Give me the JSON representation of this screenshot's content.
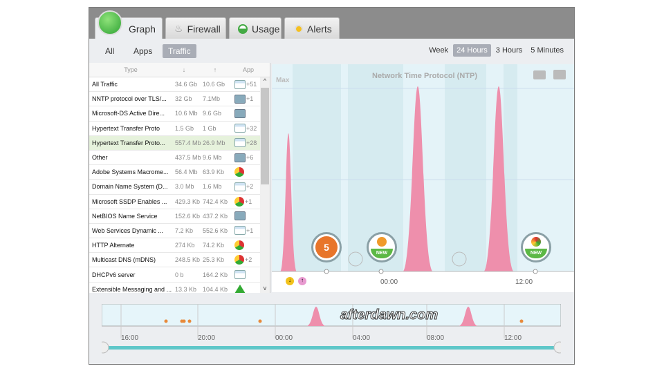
{
  "tabs": [
    {
      "label": "Graph",
      "icon": "graph-icon",
      "active": true
    },
    {
      "label": "Firewall",
      "icon": "flame-icon"
    },
    {
      "label": "Usage",
      "icon": "usage-icon"
    },
    {
      "label": "Alerts",
      "icon": "alert-icon"
    }
  ],
  "filters": [
    "All",
    "Apps",
    "Traffic"
  ],
  "active_filter": "Traffic",
  "ranges": [
    "Week",
    "24 Hours",
    "3 Hours",
    "5 Minutes"
  ],
  "active_range": "24 Hours",
  "table": {
    "headers": [
      "Type",
      "↓",
      "↑",
      "App"
    ],
    "rows": [
      [
        "All Traffic",
        "34.6 Gb",
        "10.6 Gb",
        "window",
        "+51"
      ],
      [
        "NNTP protocol over TLS/...",
        "32 Gb",
        "7.1Mb",
        "net2",
        "+1"
      ],
      [
        "Microsoft-DS Active Dire...",
        "10.6 Mb",
        "9.6 Gb",
        "net",
        ""
      ],
      [
        "Hypertext Transfer Proto",
        "1.5 Gb",
        "1 Gb",
        "window",
        "+32"
      ],
      [
        "Hypertext Transfer Proto...",
        "557.4 Mb",
        "26.9 Mb",
        "window",
        "+28"
      ],
      [
        "Other",
        "437.5 Mb",
        "9.6 Mb",
        "net",
        "+6"
      ],
      [
        "Adobe Systems Macrome...",
        "56.4 Mb",
        "63.9 Kb",
        "chrome",
        ""
      ],
      [
        "Domain Name System (D...",
        "3.0 Mb",
        "1.6 Mb",
        "window",
        "+2"
      ],
      [
        "Microsoft SSDP Enables ...",
        "429.3 Kb",
        "742.4 Kb",
        "chrome",
        "+1"
      ],
      [
        "NetBIOS Name Service",
        "152.6 Kb",
        "437.2 Kb",
        "net",
        ""
      ],
      [
        "Web Services Dynamic ...",
        "7.2 Kb",
        "552.6 Kb",
        "window",
        "+1"
      ],
      [
        "HTTP Alternate",
        "274 Kb",
        "74.2 Kb",
        "chrome",
        ""
      ],
      [
        "Multicast DNS (mDNS)",
        "248.5 Kb",
        "25.3 Kb",
        "chrome",
        "+2"
      ],
      [
        "DHCPv6 server",
        "0 b",
        "164.2 Kb",
        "window",
        ""
      ],
      [
        "Extensible Messaging and ...",
        "13.3 Kb",
        "104.4 Kb",
        "drive",
        ""
      ]
    ],
    "selected_row": 4
  },
  "chart": {
    "title": "Network Time Protocol (NTP)",
    "max_label": "Max",
    "x_labels": [
      "00:00",
      "12:00"
    ],
    "badge_count": "5",
    "new_label": "NEW",
    "peak_color": "#ee8fac"
  },
  "timeline": {
    "x_labels": [
      "16:00",
      "20:00",
      "00:00",
      "04:00",
      "08:00",
      "12:00"
    ]
  },
  "watermark": "afterdawn.com"
}
